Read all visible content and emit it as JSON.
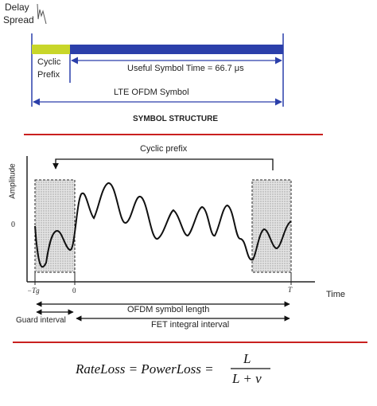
{
  "top": {
    "delay_spread_line1": "Delay",
    "delay_spread_line2": "Spread",
    "cyclic_line1": "Cyclic",
    "cyclic_line2": "Prefix",
    "useful_symbol_time": "Useful Symbol Time = 66.7 μs",
    "lte_ofdm_symbol": "LTE OFDM Symbol",
    "title": "SYMBOL STRUCTURE",
    "colors": {
      "prefix": "#c8d62a",
      "symbol": "#2b3faa",
      "arrow": "#2b3faa",
      "separator": "#c9201f"
    }
  },
  "bottom": {
    "amplitude": "Amplitude",
    "zero": "0",
    "cyclic_prefix": "Cyclic prefix",
    "time": "Time",
    "tick_neg_tg": "−Tg",
    "tick_zero": "0",
    "tick_t": "T",
    "ofdm_symbol_length": "OFDM symbol length",
    "guard_interval": "Guard interval",
    "fet_integral_interval": "FET integral interval"
  },
  "formula": {
    "lhs": "RateLoss = PowerLoss =",
    "numerator": "L",
    "denominator": "L + v"
  }
}
